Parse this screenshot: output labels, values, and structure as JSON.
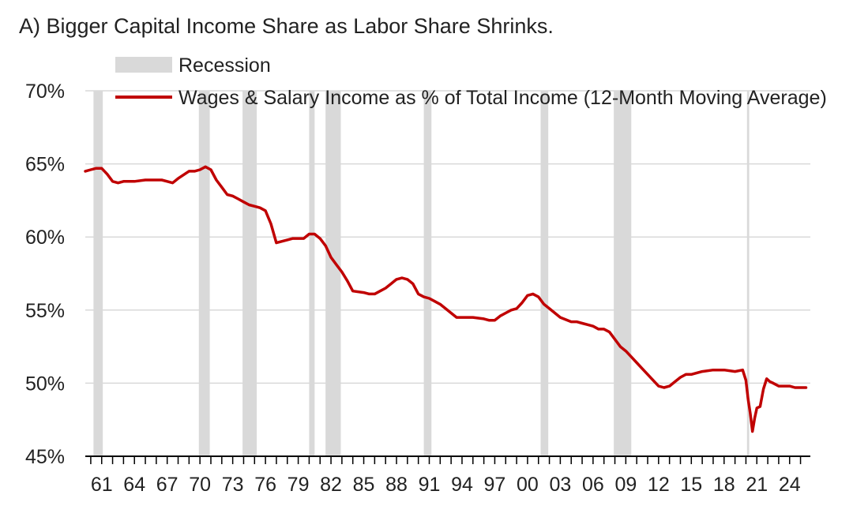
{
  "chart_data": {
    "type": "line",
    "title": "A) Bigger Capital Income Share as Labor Share Shrinks.",
    "xlabel": "",
    "ylabel": "",
    "x_range": [
      1959.5,
      2025.9
    ],
    "ylim": [
      45,
      70
    ],
    "y_ticks": [
      45,
      50,
      55,
      60,
      65,
      70
    ],
    "y_tick_labels": [
      "45%",
      "50%",
      "55%",
      "60%",
      "65%",
      "70%"
    ],
    "x_tick_years": [
      1961,
      1964,
      1967,
      1970,
      1973,
      1976,
      1979,
      1982,
      1985,
      1988,
      1991,
      1994,
      1997,
      2000,
      2003,
      2006,
      2009,
      2012,
      2015,
      2018,
      2021,
      2024
    ],
    "x_tick_labels": [
      "61",
      "64",
      "67",
      "70",
      "73",
      "76",
      "79",
      "82",
      "85",
      "88",
      "91",
      "94",
      "97",
      "00",
      "03",
      "06",
      "09",
      "12",
      "15",
      "18",
      "21",
      "24"
    ],
    "grid": true,
    "legend_position": "top",
    "legend": {
      "recession_label": "Recession",
      "series_label": "Wages & Salary Income as % of Total Income (12-Month Moving Average)"
    },
    "colors": {
      "line": "#c00000",
      "recession": "#d9d9d9",
      "grid": "#d9d9d9",
      "axis": "#000000"
    },
    "recessions": [
      [
        1960.25,
        1961.1
      ],
      [
        1969.9,
        1970.9
      ],
      [
        1973.9,
        1975.2
      ],
      [
        1980.0,
        1980.5
      ],
      [
        1981.5,
        1982.9
      ],
      [
        1990.5,
        1991.2
      ],
      [
        2001.2,
        2001.9
      ],
      [
        2007.9,
        2009.5
      ],
      [
        2020.1,
        2020.3
      ]
    ],
    "series": [
      {
        "name": "Wages & Salary Income as % of Total Income (12-Month Moving Average)",
        "x": [
          1959.5,
          1960.0,
          1960.5,
          1961.0,
          1961.5,
          1962.0,
          1962.5,
          1963.0,
          1964.0,
          1965.0,
          1965.5,
          1966.0,
          1966.5,
          1967.0,
          1967.5,
          1968.0,
          1969.0,
          1969.5,
          1970.0,
          1970.5,
          1971.0,
          1971.5,
          1972.0,
          1972.5,
          1973.0,
          1973.5,
          1974.0,
          1974.5,
          1975.0,
          1975.5,
          1976.0,
          1976.5,
          1977.0,
          1978.0,
          1978.5,
          1979.0,
          1979.5,
          1980.0,
          1980.5,
          1981.0,
          1981.5,
          1982.0,
          1982.5,
          1983.0,
          1983.5,
          1984.0,
          1985.0,
          1985.5,
          1986.0,
          1986.5,
          1987.0,
          1987.5,
          1988.0,
          1988.5,
          1989.0,
          1989.5,
          1990.0,
          1990.5,
          1991.0,
          1991.5,
          1992.0,
          1993.0,
          1993.5,
          1994.0,
          1995.0,
          1996.0,
          1996.5,
          1997.0,
          1997.5,
          1998.0,
          1998.5,
          1999.0,
          1999.5,
          2000.0,
          2000.5,
          2001.0,
          2001.5,
          2002.0,
          2002.5,
          2003.0,
          2004.0,
          2004.5,
          2005.0,
          2005.5,
          2006.0,
          2006.5,
          2007.0,
          2007.5,
          2008.0,
          2008.5,
          2009.0,
          2009.5,
          2010.0,
          2010.5,
          2011.0,
          2011.5,
          2012.0,
          2012.5,
          2013.0,
          2013.5,
          2014.0,
          2014.5,
          2015.0,
          2015.5,
          2016.0,
          2017.0,
          2018.0,
          2019.0,
          2019.7,
          2020.0,
          2020.2,
          2020.4,
          2020.6,
          2020.8,
          2021.0,
          2021.3,
          2021.6,
          2021.9,
          2022.2,
          2022.5,
          2023.0,
          2023.5,
          2024.0,
          2024.5,
          2025.0,
          2025.5
        ],
        "y": [
          64.5,
          64.6,
          64.7,
          64.7,
          64.3,
          63.8,
          63.7,
          63.8,
          63.8,
          63.9,
          63.9,
          63.9,
          63.9,
          63.8,
          63.7,
          64.0,
          64.5,
          64.5,
          64.6,
          64.8,
          64.6,
          63.9,
          63.4,
          62.9,
          62.8,
          62.6,
          62.4,
          62.2,
          62.1,
          62.0,
          61.8,
          60.9,
          59.6,
          59.8,
          59.9,
          59.9,
          59.9,
          60.2,
          60.2,
          59.9,
          59.4,
          58.6,
          58.1,
          57.6,
          57.0,
          56.3,
          56.2,
          56.1,
          56.1,
          56.3,
          56.5,
          56.8,
          57.1,
          57.2,
          57.1,
          56.8,
          56.1,
          55.9,
          55.8,
          55.6,
          55.4,
          54.8,
          54.5,
          54.5,
          54.5,
          54.4,
          54.3,
          54.3,
          54.6,
          54.8,
          55.0,
          55.1,
          55.5,
          56.0,
          56.1,
          55.9,
          55.4,
          55.1,
          54.8,
          54.5,
          54.2,
          54.2,
          54.1,
          54.0,
          53.9,
          53.7,
          53.7,
          53.5,
          53.0,
          52.5,
          52.2,
          51.8,
          51.4,
          51.0,
          50.6,
          50.2,
          49.8,
          49.7,
          49.8,
          50.1,
          50.4,
          50.6,
          50.6,
          50.7,
          50.8,
          50.9,
          50.9,
          50.8,
          50.9,
          50.2,
          48.9,
          47.9,
          46.7,
          47.6,
          48.3,
          48.4,
          49.6,
          50.3,
          50.1,
          50.0,
          49.8,
          49.8,
          49.8,
          49.7,
          49.7,
          49.7
        ]
      }
    ]
  }
}
